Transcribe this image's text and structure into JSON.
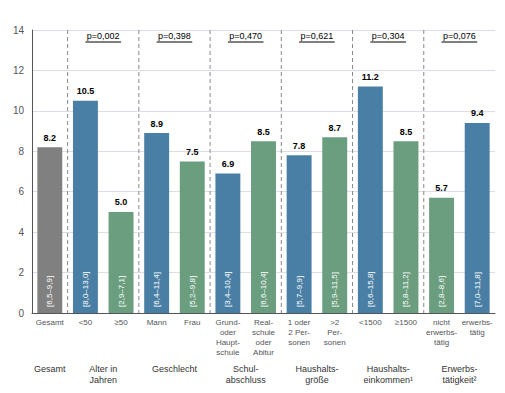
{
  "chart_data": {
    "type": "bar",
    "groups": [
      {
        "label": "Gesamt",
        "categories": [
          "Gesamt"
        ],
        "values": [
          8.2
        ],
        "value_labels": [
          "8.2"
        ],
        "ci": [
          "[6,5–9,9]"
        ],
        "colors": [
          "#808080"
        ]
      },
      {
        "label": "Alter in\nJahren",
        "categories": [
          "<50",
          "≥50"
        ],
        "values": [
          10.5,
          5.0
        ],
        "value_labels": [
          "10.5",
          "5.0"
        ],
        "ci": [
          "[8,0–13,0]",
          "[2,9–7,1]"
        ],
        "colors": [
          "#4a7fa5",
          "#6a9e7f"
        ],
        "annotation": "p=0,002"
      },
      {
        "label": "Geschlecht",
        "categories": [
          "Mann",
          "Frau"
        ],
        "values": [
          8.9,
          7.5
        ],
        "value_labels": [
          "8.9",
          "7.5"
        ],
        "ci": [
          "[6,4–11,4]",
          "[5,2–9,8]"
        ],
        "colors": [
          "#4a7fa5",
          "#6a9e7f"
        ],
        "annotation": "p=0,398"
      },
      {
        "label": "Schul-\nabschluss",
        "categories": [
          "Grund-\noder\nHaupt-\nschule",
          "Real-\nschule\noder\nAbitur"
        ],
        "values": [
          6.9,
          8.5
        ],
        "value_labels": [
          "6.9",
          "8.5"
        ],
        "ci": [
          "[3,4–10,4]",
          "[6,6–10,4]"
        ],
        "colors": [
          "#4a7fa5",
          "#6a9e7f"
        ],
        "annotation": "p=0,470"
      },
      {
        "label": "Haushalts-\ngröße",
        "categories": [
          "1 oder\n2 Per-\nsonen",
          ">2\nPer-\nsonen"
        ],
        "values": [
          7.8,
          8.7
        ],
        "value_labels": [
          "7.8",
          "8.7"
        ],
        "ci": [
          "[5,7–9,9]",
          "[5,9–11,5]"
        ],
        "colors": [
          "#4a7fa5",
          "#6a9e7f"
        ],
        "annotation": "p=0,621"
      },
      {
        "label": "Haushalts-\neinkommen¹",
        "categories": [
          "<1500",
          "≥1500"
        ],
        "values": [
          11.2,
          8.5
        ],
        "value_labels": [
          "11.2",
          "8.5"
        ],
        "ci": [
          "[6,6–15,8]",
          "[5,8–11,2]"
        ],
        "colors": [
          "#4a7fa5",
          "#6a9e7f"
        ],
        "annotation": "p=0,304"
      },
      {
        "label": "Erwerbs-\ntätigkeit²",
        "categories": [
          "nicht\nerwerbs-\ntätig",
          "erwerbs-\ntätig"
        ],
        "values": [
          5.7,
          9.4
        ],
        "value_labels": [
          "5.7",
          "9.4"
        ],
        "ci": [
          "[2,8–8,6]",
          "[7,0–11,8]"
        ],
        "colors": [
          "#6a9e7f",
          "#4a7fa5"
        ],
        "annotation": "p=0,076"
      }
    ],
    "ylim": [
      0,
      14
    ],
    "yticks": [
      0,
      2,
      4,
      6,
      8,
      10,
      12,
      14
    ],
    "grid": true,
    "data_labels": true
  }
}
